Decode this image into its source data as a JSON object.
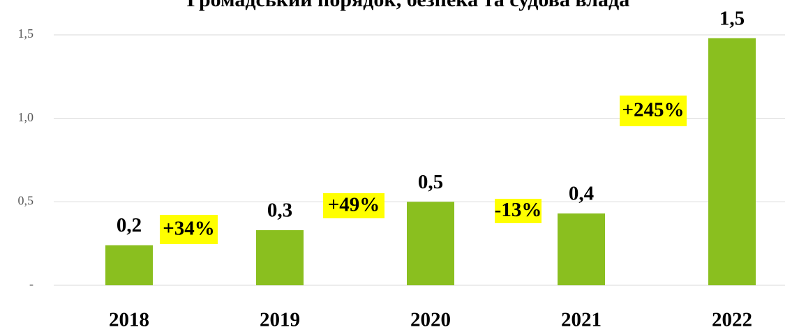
{
  "chart_data": {
    "type": "bar",
    "title": "Громадський порядок, безпека та судова влада",
    "categories": [
      "2018",
      "2019",
      "2020",
      "2021",
      "2022"
    ],
    "values": [
      0.24,
      0.33,
      0.5,
      0.43,
      1.48
    ],
    "value_labels": [
      "0,2",
      "0,3",
      "0,5",
      "0,4",
      "1,5"
    ],
    "color": "#8abf1f",
    "ylim": [
      0,
      1.5
    ],
    "yticks": [
      {
        "value": 0,
        "label": "-"
      },
      {
        "value": 0.5,
        "label": "0,5"
      },
      {
        "value": 1.0,
        "label": "1,0"
      },
      {
        "value": 1.5,
        "label": "1,5"
      }
    ],
    "grid": true,
    "annotations": [
      "+34%",
      "+49%",
      "-13%",
      "+245%"
    ]
  }
}
